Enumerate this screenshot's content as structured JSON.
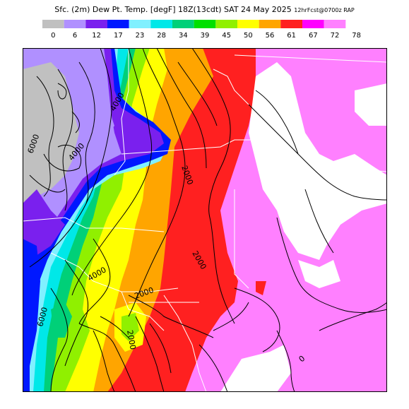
{
  "title": {
    "main": "Sfc. (2m) Dew Pt. Temp. [degF] 18Z(13cdt) SAT 24 May 2025",
    "run": "12hrFcst@0700z RAP"
  },
  "legend": {
    "ticks": [
      "0",
      "6",
      "12",
      "17",
      "23",
      "28",
      "34",
      "39",
      "45",
      "50",
      "56",
      "61",
      "67",
      "72",
      "78"
    ],
    "colors": [
      "#c0c0c0",
      "#b090ff",
      "#7a20ee",
      "#0018ff",
      "#80f0ff",
      "#00e8e8",
      "#00d078",
      "#00e000",
      "#90f000",
      "#ffff00",
      "#ffa500",
      "#ff2020",
      "#ff00ff",
      "#ff80ff"
    ]
  },
  "contours": {
    "labels": [
      "6000",
      "4000",
      "2000",
      "4000",
      "2000",
      "2000",
      "6000",
      "2000",
      "4000",
      "0"
    ]
  }
}
